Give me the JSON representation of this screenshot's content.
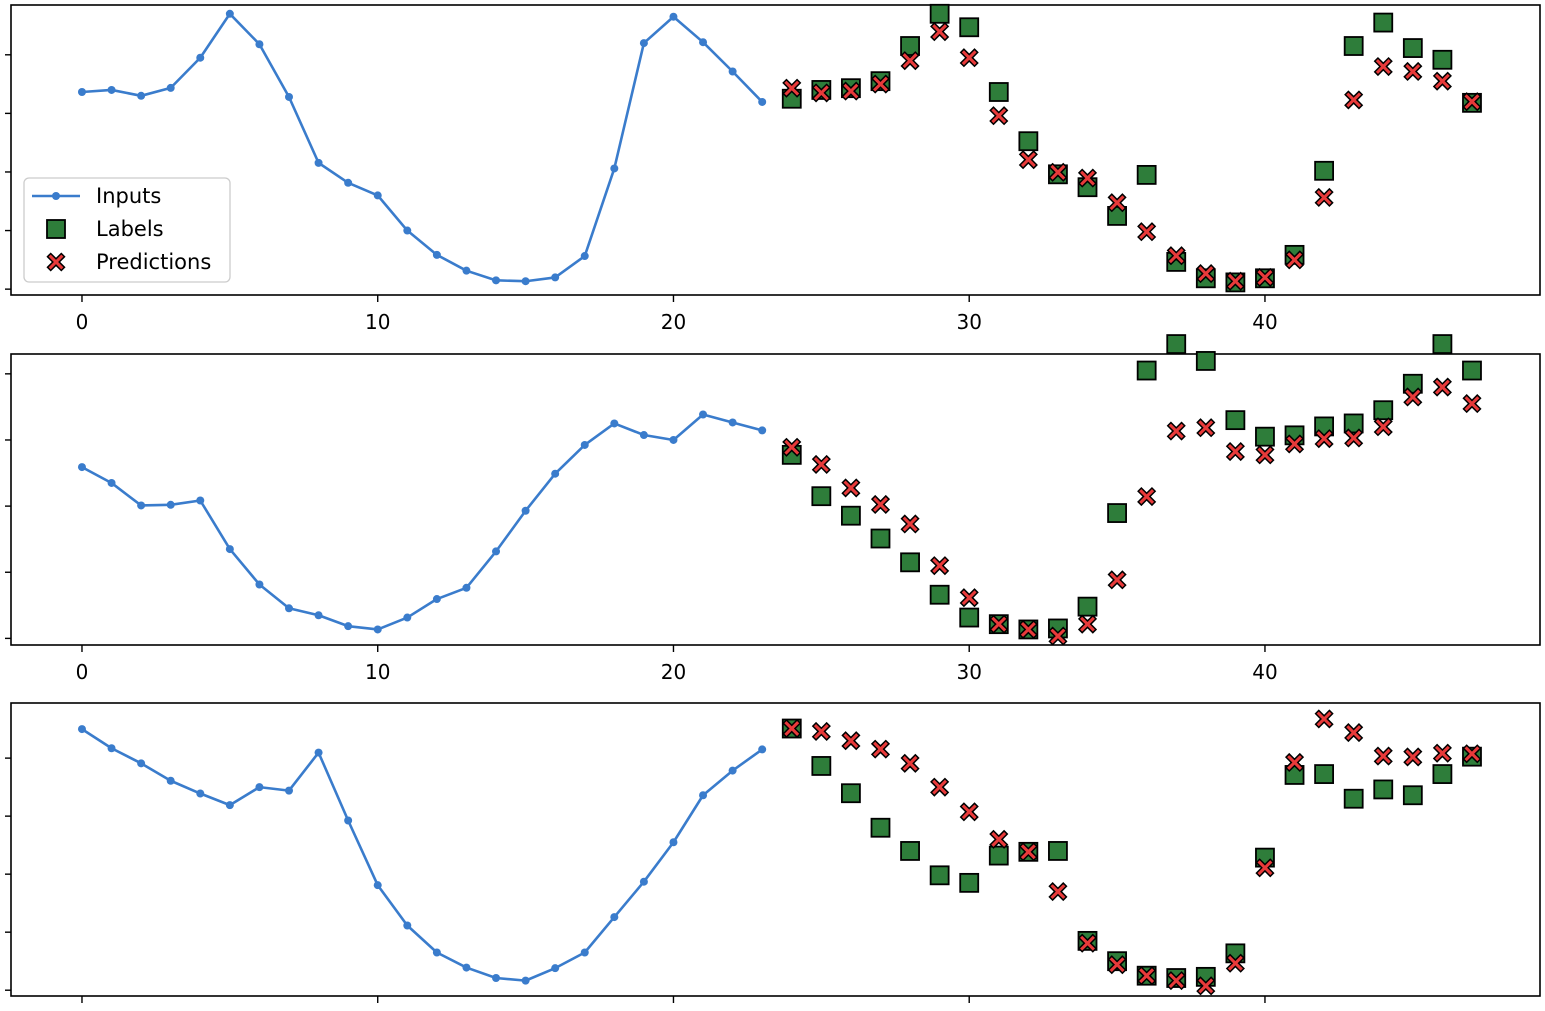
{
  "colors": {
    "inputs": "#3a7ccc",
    "labels": "#2e7d3a",
    "predictions": "#e83a3a",
    "axes": "#000000",
    "background": "#ffffff"
  },
  "legend": {
    "placement": "lower-left of first panel",
    "entries": [
      "Inputs",
      "Labels",
      "Predictions"
    ]
  },
  "chart_data": [
    {
      "type": "line",
      "xlim": [
        -2.4,
        49.3
      ],
      "ylim": [
        -0.2,
        9.7
      ],
      "x_ticks": [
        0,
        10,
        20,
        30,
        40
      ],
      "x_tick_labels": [
        "0",
        "10",
        "20",
        "30",
        "40"
      ],
      "show_x_tick_labels": true,
      "series": [
        {
          "name": "Inputs",
          "x": [
            0,
            1,
            2,
            3,
            4,
            5,
            6,
            7,
            8,
            9,
            10,
            11,
            12,
            13,
            14,
            15,
            16,
            17,
            18,
            19,
            20,
            21,
            22,
            23
          ],
          "y": [
            6.73,
            6.8,
            6.6,
            6.87,
            7.9,
            9.4,
            8.36,
            6.56,
            4.31,
            3.63,
            3.2,
            2.0,
            1.17,
            0.63,
            0.3,
            0.27,
            0.4,
            1.13,
            4.12,
            8.4,
            9.3,
            8.43,
            7.43,
            6.39
          ]
        },
        {
          "name": "Labels",
          "x": [
            24,
            25,
            26,
            27,
            28,
            29,
            30,
            31,
            32,
            33,
            34,
            35,
            36,
            37,
            38,
            39,
            40,
            41,
            42,
            43,
            44,
            45,
            46,
            47
          ],
          "y": [
            6.5,
            6.8,
            6.86,
            7.1,
            8.3,
            9.4,
            8.94,
            6.73,
            5.05,
            3.92,
            3.48,
            2.5,
            3.9,
            0.93,
            0.37,
            0.23,
            0.37,
            1.17,
            4.04,
            8.3,
            9.1,
            8.23,
            7.83,
            6.36
          ]
        },
        {
          "name": "Predictions",
          "x": [
            24,
            25,
            26,
            27,
            28,
            29,
            30,
            31,
            32,
            33,
            34,
            35,
            36,
            37,
            38,
            39,
            40,
            41,
            42,
            43,
            44,
            45,
            46,
            47
          ],
          "y": [
            6.86,
            6.7,
            6.76,
            7.0,
            7.8,
            8.79,
            7.9,
            5.92,
            4.42,
            3.99,
            3.79,
            2.95,
            1.96,
            1.14,
            0.53,
            0.27,
            0.4,
            1.0,
            3.13,
            6.46,
            7.6,
            7.43,
            7.1,
            6.4
          ]
        }
      ]
    },
    {
      "type": "line",
      "xlim": [
        -2.4,
        49.3
      ],
      "ylim": [
        -0.2,
        8.6
      ],
      "x_ticks": [
        0,
        10,
        20,
        30,
        40
      ],
      "x_tick_labels": [
        "0",
        "10",
        "20",
        "30",
        "40"
      ],
      "show_x_tick_labels": true,
      "series": [
        {
          "name": "Inputs",
          "x": [
            0,
            1,
            2,
            3,
            4,
            5,
            6,
            7,
            8,
            9,
            10,
            11,
            12,
            13,
            14,
            15,
            16,
            17,
            18,
            19,
            20,
            21,
            22,
            23
          ],
          "y": [
            5.18,
            4.7,
            4.02,
            4.04,
            4.17,
            2.7,
            1.63,
            0.91,
            0.7,
            0.37,
            0.27,
            0.63,
            1.19,
            1.53,
            2.63,
            3.86,
            4.98,
            5.85,
            6.5,
            6.15,
            6.0,
            6.77,
            6.53,
            6.29
          ]
        },
        {
          "name": "Labels",
          "x": [
            24,
            25,
            26,
            27,
            28,
            29,
            30,
            31,
            32,
            33,
            34,
            35,
            36,
            37,
            38,
            39,
            40,
            41,
            42,
            43,
            44,
            45,
            46,
            47
          ],
          "y": [
            5.55,
            4.3,
            3.71,
            3.02,
            2.3,
            1.32,
            0.63,
            0.43,
            0.27,
            0.3,
            0.96,
            3.79,
            8.1,
            8.9,
            8.39,
            6.6,
            6.1,
            6.14,
            6.41,
            6.5,
            6.9,
            7.7,
            8.9,
            8.1
          ]
        },
        {
          "name": "Predictions",
          "x": [
            24,
            25,
            26,
            27,
            28,
            29,
            30,
            31,
            32,
            33,
            34,
            35,
            36,
            37,
            38,
            39,
            40,
            41,
            42,
            43,
            44,
            45,
            46,
            47
          ],
          "y": [
            5.78,
            5.26,
            4.55,
            4.05,
            3.46,
            2.2,
            1.23,
            0.43,
            0.27,
            0.07,
            0.43,
            1.77,
            4.29,
            6.27,
            6.37,
            5.65,
            5.55,
            5.88,
            6.04,
            6.06,
            6.4,
            7.3,
            7.6,
            7.1
          ]
        }
      ]
    },
    {
      "type": "line",
      "xlim": [
        -2.4,
        49.3
      ],
      "ylim": [
        -0.2,
        9.9
      ],
      "x_ticks": [
        0,
        10,
        20,
        30,
        40
      ],
      "x_tick_labels": [
        "",
        "",
        "",
        "",
        ""
      ],
      "show_x_tick_labels": false,
      "series": [
        {
          "name": "Inputs",
          "x": [
            0,
            1,
            2,
            3,
            4,
            5,
            6,
            7,
            8,
            9,
            10,
            11,
            12,
            13,
            14,
            15,
            16,
            17,
            18,
            19,
            20,
            21,
            22,
            23
          ],
          "y": [
            9.0,
            8.34,
            7.82,
            7.22,
            6.78,
            6.38,
            7.0,
            6.88,
            8.19,
            5.85,
            3.62,
            2.23,
            1.3,
            0.78,
            0.42,
            0.33,
            0.76,
            1.3,
            2.52,
            3.74,
            5.1,
            6.72,
            7.57,
            8.3
          ]
        },
        {
          "name": "Labels",
          "x": [
            24,
            25,
            26,
            27,
            28,
            29,
            30,
            31,
            32,
            33,
            34,
            35,
            36,
            37,
            38,
            39,
            40,
            41,
            42,
            43,
            44,
            45,
            46,
            47
          ],
          "y": [
            9.02,
            7.73,
            6.79,
            5.6,
            4.8,
            3.96,
            3.7,
            4.64,
            4.77,
            4.8,
            1.7,
            1.0,
            0.5,
            0.42,
            0.46,
            1.27,
            4.57,
            7.42,
            7.45,
            6.6,
            6.92,
            6.72,
            7.45,
            8.05
          ]
        },
        {
          "name": "Predictions",
          "x": [
            24,
            25,
            26,
            27,
            28,
            29,
            30,
            31,
            32,
            33,
            34,
            35,
            36,
            37,
            38,
            39,
            40,
            41,
            42,
            43,
            44,
            45,
            46,
            47
          ],
          "y": [
            9.02,
            8.92,
            8.6,
            8.31,
            7.82,
            7.0,
            6.15,
            5.2,
            4.77,
            3.4,
            1.62,
            0.88,
            0.5,
            0.33,
            0.15,
            0.93,
            4.22,
            7.85,
            9.35,
            8.88,
            8.07,
            8.04,
            8.17,
            8.15
          ]
        }
      ]
    }
  ]
}
